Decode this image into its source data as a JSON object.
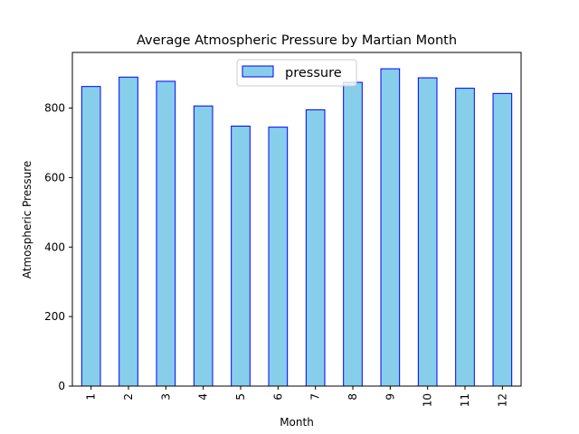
{
  "chart_data": {
    "type": "bar",
    "title": "Average Atmospheric Pressure by Martian Month",
    "xlabel": "Month",
    "ylabel": "Atmospheric Pressure",
    "categories": [
      "1",
      "2",
      "3",
      "4",
      "5",
      "6",
      "7",
      "8",
      "9",
      "10",
      "11",
      "12"
    ],
    "series": [
      {
        "name": "pressure",
        "values": [
          862,
          889,
          877,
          806,
          748,
          745,
          795,
          874,
          913,
          887,
          857,
          842
        ]
      }
    ],
    "ylim": [
      0,
      960
    ],
    "yticks": [
      0,
      200,
      400,
      600,
      800
    ],
    "grid": false,
    "legend_position": "upper-center",
    "colors": {
      "bar_fill": "#87CEEB",
      "bar_edge": "#0000FF",
      "axis": "#000000"
    }
  }
}
